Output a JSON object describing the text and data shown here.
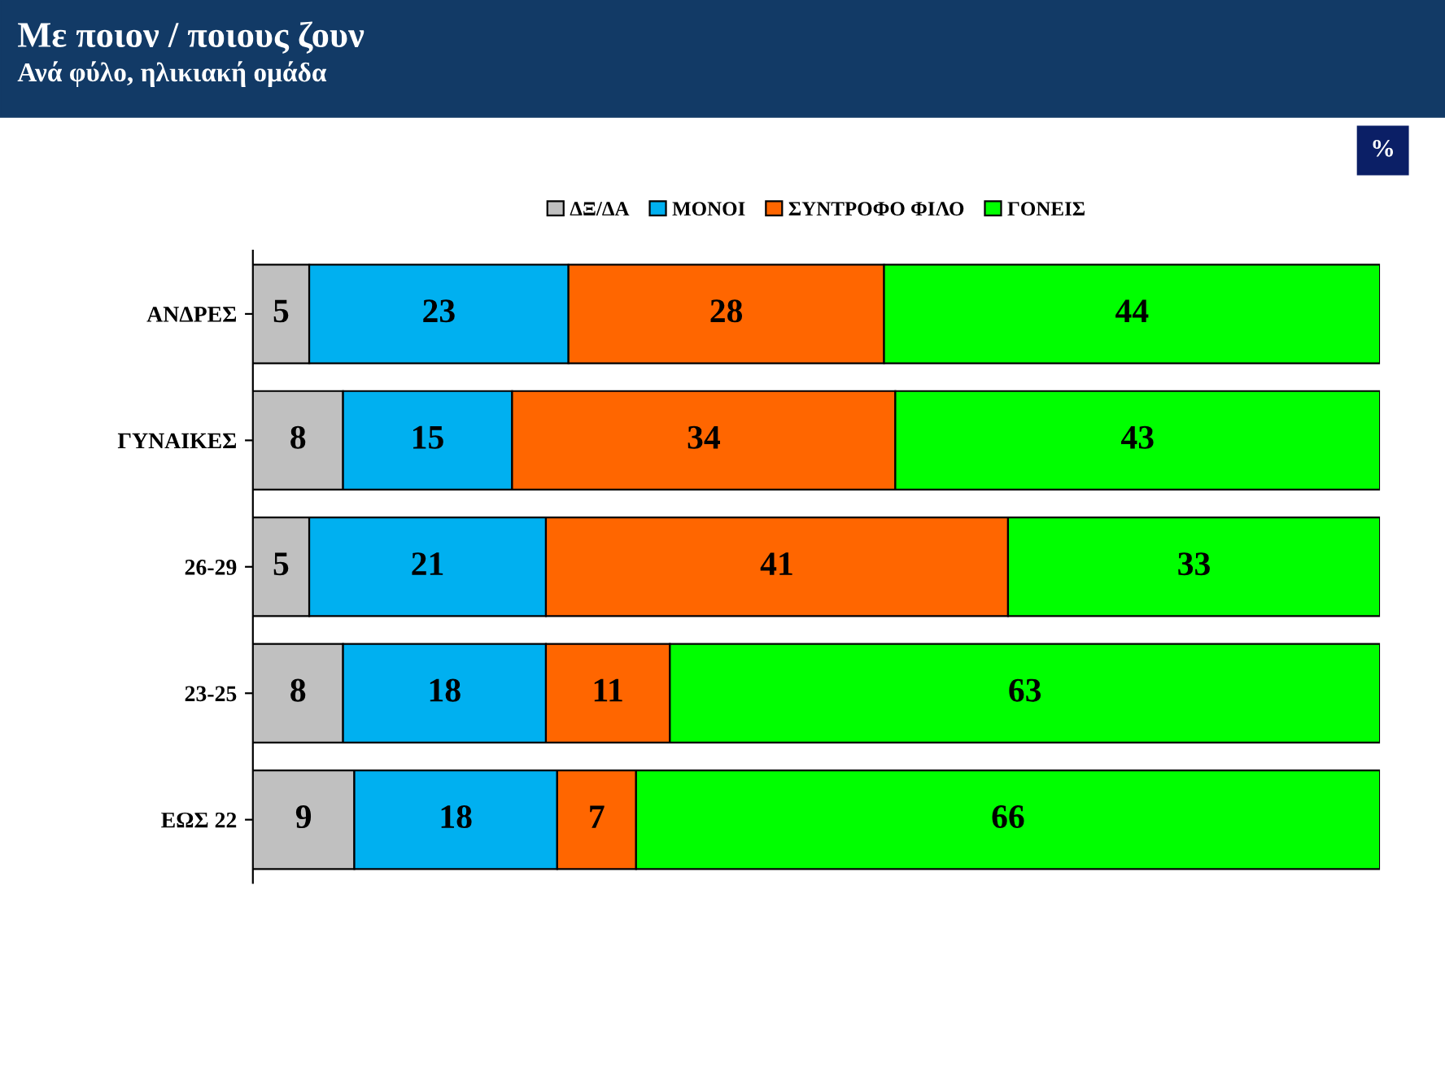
{
  "chart_data": {
    "type": "bar",
    "orientation": "horizontal",
    "stacked": true,
    "title": "Με ποιον / ποιους ζουν",
    "subtitle": "Ανά φύλο, ηλικιακή ομάδα",
    "categories": [
      "ΑΝΔΡΕΣ",
      "ΓΥΝΑΙΚΕΣ",
      "26-29",
      "23-25",
      "ΕΩΣ 22"
    ],
    "series": [
      {
        "name": "ΔΞ/ΔΑ",
        "color": "#c0c0c0",
        "values": [
          5,
          8,
          5,
          8,
          9
        ]
      },
      {
        "name": "ΜΟΝΟΙ",
        "color": "#00b0f0",
        "values": [
          23,
          15,
          21,
          18,
          18
        ]
      },
      {
        "name": "ΣΥΝΤΡΟΦΟ ΦΙΛΟ",
        "color": "#ff6600",
        "values": [
          28,
          34,
          41,
          11,
          7
        ]
      },
      {
        "name": "ΓΟΝΕΙΣ",
        "color": "#00ff00",
        "values": [
          44,
          43,
          33,
          63,
          66
        ]
      }
    ],
    "data_labels": true,
    "legend": "top",
    "grid": false,
    "tick_labels": "y",
    "annotations": [
      "%"
    ]
  }
}
